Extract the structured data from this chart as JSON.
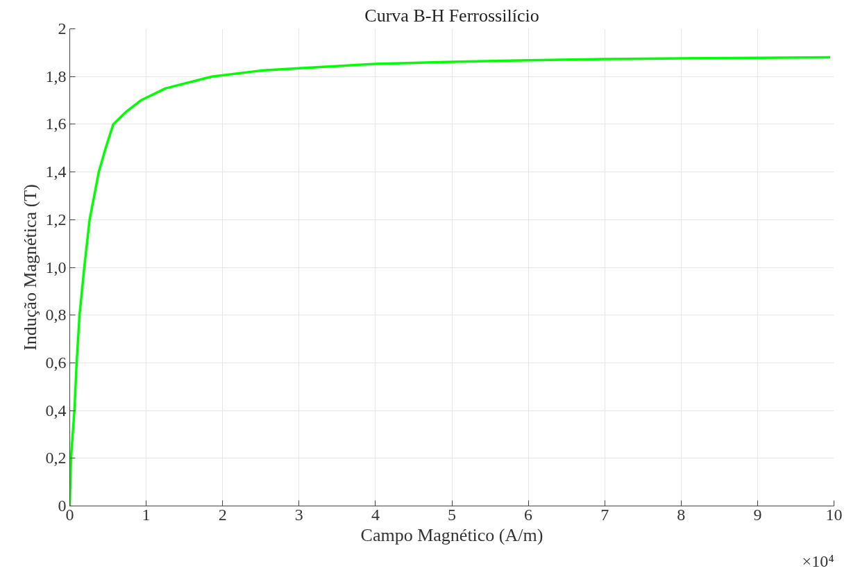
{
  "chart_data": {
    "type": "line",
    "title": "Curva B-H Ferrossilício",
    "xlabel": "Campo Magnético (A/m)",
    "ylabel": "Indução Magnética (T)",
    "annotations": [
      "×10⁴"
    ],
    "x": [
      0,
      0.016,
      0.061,
      0.09,
      0.128,
      0.19,
      0.26,
      0.38,
      0.47,
      0.57,
      0.73,
      0.93,
      1.25,
      1.86,
      2.5,
      3,
      4,
      5,
      6,
      7,
      8,
      9.95
    ],
    "series": [
      {
        "color": "#00ff00",
        "values": [
          0,
          0.2,
          0.4,
          0.6,
          0.8,
          1.0,
          1.2,
          1.4,
          1.5,
          1.6,
          1.65,
          1.7,
          1.75,
          1.8,
          1.825,
          1.835,
          1.853,
          1.862,
          1.868,
          1.873,
          1.876,
          1.881
        ]
      }
    ],
    "xlim": [
      0,
      10
    ],
    "ylim": [
      0,
      2
    ],
    "xticks": [
      0,
      1,
      2,
      3,
      4,
      5,
      6,
      7,
      8,
      9,
      10
    ],
    "yticks": [
      0,
      {
        "value": 0.2,
        "label": "0,2"
      },
      {
        "value": 0.4,
        "label": "0,4"
      },
      {
        "value": 0.6,
        "label": "0,6"
      },
      {
        "value": 0.8,
        "label": "0,8"
      },
      {
        "value": 1.0,
        "label": "1,0"
      },
      {
        "value": 1.2,
        "label": "1,2"
      },
      {
        "value": 1.4,
        "label": "1,4"
      },
      {
        "value": 1.6,
        "label": "1,6"
      },
      {
        "value": 1.8,
        "label": "1,8"
      },
      2
    ],
    "grid": true,
    "marker": "none",
    "line_style": "solid"
  }
}
